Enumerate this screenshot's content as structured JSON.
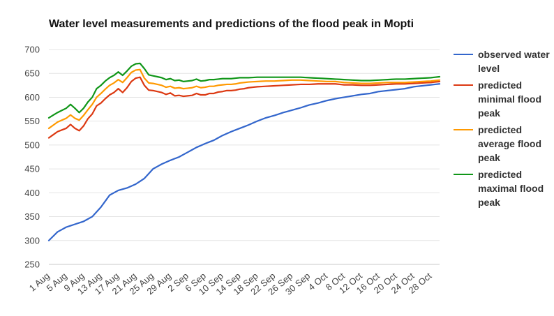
{
  "title": "Water level measurements and predictions of the flood peak in Mopti",
  "chart_data": {
    "type": "line",
    "title": "Water level measurements and predictions of the flood peak in Mopti",
    "xlabel": "",
    "ylabel": "",
    "ylim": [
      250,
      700
    ],
    "yticks": [
      250,
      300,
      350,
      400,
      450,
      500,
      550,
      600,
      650,
      700
    ],
    "xtick_labels": [
      "1 Aug",
      "5 Aug",
      "9 Aug",
      "13 Aug",
      "17 Aug",
      "21 Aug",
      "25 Aug",
      "29 Aug",
      "2 Sep",
      "6 Sep",
      "10 Sep",
      "14 Sep",
      "18 Sep",
      "22 Sep",
      "26 Sep",
      "30 Sep",
      "4 Oct",
      "8 Oct",
      "12 Oct",
      "16 Oct",
      "20 Oct",
      "24 Oct",
      "28 Oct"
    ],
    "grid": true,
    "legend_position": "right",
    "days": 91,
    "series": [
      {
        "name": "observed water level",
        "color": "#3366cc",
        "points": [
          [
            0,
            300
          ],
          [
            2,
            318
          ],
          [
            4,
            328
          ],
          [
            6,
            334
          ],
          [
            8,
            340
          ],
          [
            10,
            350
          ],
          [
            12,
            370
          ],
          [
            14,
            395
          ],
          [
            16,
            405
          ],
          [
            18,
            410
          ],
          [
            20,
            418
          ],
          [
            22,
            430
          ],
          [
            23,
            440
          ],
          [
            24,
            450
          ],
          [
            26,
            460
          ],
          [
            28,
            468
          ],
          [
            30,
            475
          ],
          [
            32,
            485
          ],
          [
            34,
            495
          ],
          [
            36,
            503
          ],
          [
            38,
            510
          ],
          [
            40,
            520
          ],
          [
            42,
            528
          ],
          [
            44,
            535
          ],
          [
            46,
            542
          ],
          [
            48,
            550
          ],
          [
            50,
            557
          ],
          [
            52,
            562
          ],
          [
            54,
            568
          ],
          [
            56,
            573
          ],
          [
            58,
            578
          ],
          [
            60,
            584
          ],
          [
            62,
            588
          ],
          [
            64,
            593
          ],
          [
            66,
            597
          ],
          [
            68,
            600
          ],
          [
            70,
            603
          ],
          [
            72,
            606
          ],
          [
            74,
            608
          ],
          [
            76,
            612
          ],
          [
            78,
            614
          ],
          [
            80,
            616
          ],
          [
            82,
            618
          ],
          [
            84,
            622
          ],
          [
            86,
            624
          ],
          [
            88,
            626
          ],
          [
            90,
            628
          ]
        ]
      },
      {
        "name": "predicted minimal flood peak",
        "color": "#dc3912",
        "points": [
          [
            0,
            515
          ],
          [
            2,
            528
          ],
          [
            4,
            535
          ],
          [
            5,
            543
          ],
          [
            6,
            535
          ],
          [
            7,
            530
          ],
          [
            8,
            540
          ],
          [
            9,
            555
          ],
          [
            10,
            565
          ],
          [
            11,
            582
          ],
          [
            12,
            588
          ],
          [
            13,
            597
          ],
          [
            14,
            605
          ],
          [
            15,
            610
          ],
          [
            16,
            618
          ],
          [
            17,
            610
          ],
          [
            18,
            620
          ],
          [
            19,
            633
          ],
          [
            20,
            640
          ],
          [
            21,
            642
          ],
          [
            21.5,
            643
          ],
          [
            22,
            625
          ],
          [
            23,
            615
          ],
          [
            24,
            614
          ],
          [
            25,
            612
          ],
          [
            26,
            610
          ],
          [
            27,
            606
          ],
          [
            28,
            609
          ],
          [
            29,
            603
          ],
          [
            30,
            604
          ],
          [
            31,
            602
          ],
          [
            32,
            603
          ],
          [
            33,
            604
          ],
          [
            34,
            608
          ],
          [
            35,
            605
          ],
          [
            36,
            605
          ],
          [
            37,
            608
          ],
          [
            38,
            608
          ],
          [
            39,
            611
          ],
          [
            40,
            612
          ],
          [
            41,
            614
          ],
          [
            42,
            614
          ],
          [
            43,
            615
          ],
          [
            44,
            617
          ],
          [
            45,
            618
          ],
          [
            46,
            620
          ],
          [
            48,
            622
          ],
          [
            50,
            623
          ],
          [
            52,
            624
          ],
          [
            54,
            625
          ],
          [
            56,
            626
          ],
          [
            58,
            627
          ],
          [
            60,
            627
          ],
          [
            62,
            628
          ],
          [
            64,
            628
          ],
          [
            66,
            628
          ],
          [
            68,
            626
          ],
          [
            70,
            626
          ],
          [
            72,
            625
          ],
          [
            74,
            625
          ],
          [
            76,
            626
          ],
          [
            78,
            627
          ],
          [
            80,
            628
          ],
          [
            82,
            628
          ],
          [
            84,
            629
          ],
          [
            86,
            630
          ],
          [
            88,
            631
          ],
          [
            90,
            633
          ]
        ]
      },
      {
        "name": "predicted average flood peak",
        "color": "#ff9900",
        "points": [
          [
            0,
            535
          ],
          [
            2,
            548
          ],
          [
            4,
            556
          ],
          [
            5,
            563
          ],
          [
            6,
            556
          ],
          [
            7,
            552
          ],
          [
            8,
            562
          ],
          [
            9,
            574
          ],
          [
            10,
            585
          ],
          [
            11,
            600
          ],
          [
            12,
            608
          ],
          [
            13,
            617
          ],
          [
            14,
            625
          ],
          [
            15,
            630
          ],
          [
            16,
            637
          ],
          [
            17,
            631
          ],
          [
            18,
            641
          ],
          [
            19,
            652
          ],
          [
            20,
            657
          ],
          [
            21,
            658
          ],
          [
            21.5,
            659
          ],
          [
            22,
            640
          ],
          [
            23,
            630
          ],
          [
            24,
            629
          ],
          [
            25,
            627
          ],
          [
            26,
            625
          ],
          [
            27,
            621
          ],
          [
            28,
            623
          ],
          [
            29,
            619
          ],
          [
            30,
            620
          ],
          [
            31,
            618
          ],
          [
            32,
            619
          ],
          [
            33,
            620
          ],
          [
            34,
            623
          ],
          [
            35,
            620
          ],
          [
            36,
            621
          ],
          [
            37,
            623
          ],
          [
            38,
            623
          ],
          [
            39,
            625
          ],
          [
            40,
            626
          ],
          [
            41,
            627
          ],
          [
            42,
            627
          ],
          [
            43,
            628
          ],
          [
            44,
            630
          ],
          [
            45,
            631
          ],
          [
            46,
            632
          ],
          [
            48,
            633
          ],
          [
            50,
            634
          ],
          [
            52,
            634
          ],
          [
            54,
            635
          ],
          [
            56,
            636
          ],
          [
            58,
            636
          ],
          [
            60,
            635
          ],
          [
            62,
            634
          ],
          [
            64,
            633
          ],
          [
            66,
            633
          ],
          [
            68,
            631
          ],
          [
            70,
            630
          ],
          [
            72,
            629
          ],
          [
            74,
            629
          ],
          [
            76,
            630
          ],
          [
            78,
            631
          ],
          [
            80,
            631
          ],
          [
            82,
            631
          ],
          [
            84,
            632
          ],
          [
            86,
            633
          ],
          [
            88,
            634
          ],
          [
            90,
            636
          ]
        ]
      },
      {
        "name": "predicted maximal flood peak",
        "color": "#109618",
        "points": [
          [
            0,
            557
          ],
          [
            2,
            568
          ],
          [
            4,
            577
          ],
          [
            5,
            585
          ],
          [
            6,
            577
          ],
          [
            7,
            568
          ],
          [
            8,
            577
          ],
          [
            9,
            590
          ],
          [
            10,
            600
          ],
          [
            11,
            618
          ],
          [
            12,
            625
          ],
          [
            13,
            634
          ],
          [
            14,
            641
          ],
          [
            15,
            646
          ],
          [
            16,
            653
          ],
          [
            17,
            646
          ],
          [
            18,
            655
          ],
          [
            19,
            665
          ],
          [
            20,
            670
          ],
          [
            21,
            671
          ],
          [
            21.5,
            675
          ],
          [
            22,
            660
          ],
          [
            23,
            647
          ],
          [
            24,
            645
          ],
          [
            25,
            643
          ],
          [
            26,
            641
          ],
          [
            27,
            637
          ],
          [
            28,
            639
          ],
          [
            29,
            635
          ],
          [
            30,
            636
          ],
          [
            31,
            633
          ],
          [
            32,
            634
          ],
          [
            33,
            635
          ],
          [
            34,
            638
          ],
          [
            35,
            634
          ],
          [
            36,
            635
          ],
          [
            37,
            637
          ],
          [
            38,
            637
          ],
          [
            39,
            638
          ],
          [
            40,
            639
          ],
          [
            41,
            639
          ],
          [
            42,
            639
          ],
          [
            43,
            640
          ],
          [
            44,
            641
          ],
          [
            45,
            641
          ],
          [
            46,
            641
          ],
          [
            48,
            642
          ],
          [
            50,
            642
          ],
          [
            52,
            642
          ],
          [
            54,
            642
          ],
          [
            56,
            642
          ],
          [
            58,
            642
          ],
          [
            60,
            641
          ],
          [
            62,
            640
          ],
          [
            64,
            639
          ],
          [
            66,
            638
          ],
          [
            68,
            637
          ],
          [
            70,
            636
          ],
          [
            72,
            635
          ],
          [
            74,
            635
          ],
          [
            76,
            636
          ],
          [
            78,
            637
          ],
          [
            80,
            638
          ],
          [
            82,
            638
          ],
          [
            84,
            639
          ],
          [
            86,
            640
          ],
          [
            88,
            641
          ],
          [
            90,
            643
          ]
        ]
      }
    ]
  },
  "legend": [
    {
      "label": "observed water level",
      "color": "#3366cc"
    },
    {
      "label": "predicted minimal flood peak",
      "color": "#dc3912"
    },
    {
      "label": "predicted average flood peak",
      "color": "#ff9900"
    },
    {
      "label": "predicted maximal flood peak",
      "color": "#109618"
    }
  ]
}
